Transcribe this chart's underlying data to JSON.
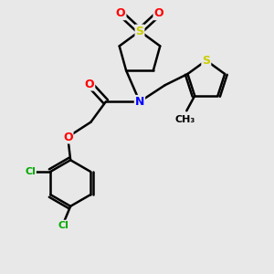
{
  "bg_color": "#e8e8e8",
  "atom_colors": {
    "S": "#cccc00",
    "N": "#0000ff",
    "O": "#ff0000",
    "Cl": "#00aa00",
    "C": "#000000"
  },
  "bond_color": "#000000",
  "lw": 1.8,
  "fs": 9,
  "fs_small": 8
}
